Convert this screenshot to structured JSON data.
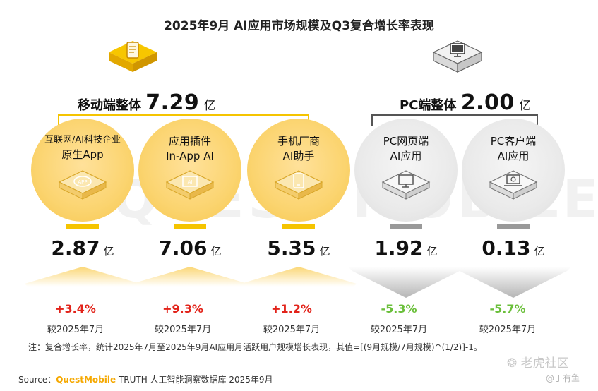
{
  "chart_data": {
    "type": "bar",
    "title": "2025年9月 AI应用市场规模及Q3复合增长率表现",
    "groups": [
      {
        "label": "移动端整体",
        "total": "7.29",
        "unit": "亿",
        "color": "#f5c400"
      },
      {
        "label": "PC端整体",
        "total": "2.00",
        "unit": "亿",
        "color": "#999999"
      }
    ],
    "categories": [
      [
        "互联网/AI科技企业",
        "原生App"
      ],
      [
        "应用插件",
        "In-App AI"
      ],
      [
        "手机厂商",
        "AI助手"
      ],
      [
        "PC网页端",
        "AI应用"
      ],
      [
        "PC客户端",
        "AI应用"
      ]
    ],
    "values": [
      2.87,
      7.06,
      5.35,
      1.92,
      0.13
    ],
    "value_labels": [
      "2.87",
      "7.06",
      "5.35",
      "1.92",
      "0.13"
    ],
    "value_unit": "亿",
    "growth_labels": [
      "+3.4%",
      "+9.3%",
      "+1.2%",
      "-5.3%",
      "-5.7%"
    ],
    "growth_values": [
      3.4,
      9.3,
      1.2,
      -5.3,
      -5.7
    ],
    "compare_label": "较2025年7月",
    "icons": [
      "app-icon",
      "ai-plugin-icon",
      "phone-icon",
      "monitor-icon",
      "laptop-cloud-icon"
    ],
    "colors": {
      "mobile": "#f5c400",
      "pc": "#999999",
      "up": "#e2231a",
      "down": "#6abf3a"
    }
  },
  "note": "注：复合增长率，统计2025年7月至2025年9月AI应用月活跃用户规模增长表现，其值=[(9月规模/7月规模)^(1/2)]-1。",
  "source": {
    "prefix": "Source：",
    "brand": "QuestMobile",
    "suffix": " TRUTH 人工智能洞察数据库 2025年9月"
  },
  "watermark": {
    "site": "老虎社区",
    "author": "@丁有鱼"
  },
  "background_mark": "QUEST MOBILE"
}
